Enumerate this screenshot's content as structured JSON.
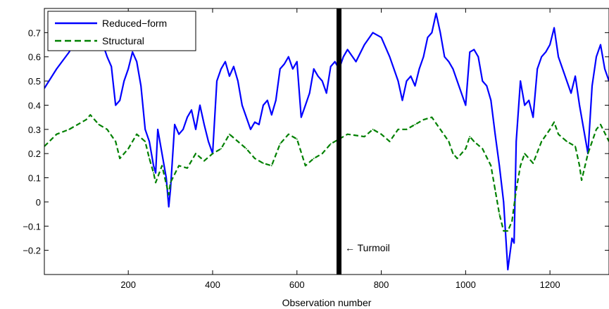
{
  "chart_data": {
    "type": "line",
    "title": "",
    "xlabel": "Observation number",
    "ylabel": "",
    "xlim": [
      1,
      1340
    ],
    "ylim": [
      -0.3,
      0.8
    ],
    "x_ticks": [
      200,
      400,
      600,
      800,
      1000,
      1200
    ],
    "y_ticks": [
      -0.2,
      -0.1,
      0,
      0.1,
      0.2,
      0.3,
      0.4,
      0.5,
      0.6,
      0.7
    ],
    "x_tick_labels": [
      "200",
      "400",
      "600",
      "800",
      "1000",
      "1200"
    ],
    "y_tick_labels": [
      "−0.2",
      "−0.1",
      "0",
      "0.1",
      "0.2",
      "0.3",
      "0.4",
      "0.5",
      "0.6",
      "0.7"
    ],
    "grid": false,
    "legend": "top-left",
    "annotation": {
      "text": "← Turmoil",
      "x": 712
    },
    "series": [
      {
        "name": "Reduced−form",
        "color": "#0000ff",
        "style": "solid",
        "points": [
          [
            1,
            0.47
          ],
          [
            30,
            0.55
          ],
          [
            60,
            0.62
          ],
          [
            80,
            0.7
          ],
          [
            110,
            0.78
          ],
          [
            120,
            0.72
          ],
          [
            140,
            0.65
          ],
          [
            150,
            0.6
          ],
          [
            160,
            0.56
          ],
          [
            170,
            0.4
          ],
          [
            180,
            0.42
          ],
          [
            190,
            0.5
          ],
          [
            200,
            0.55
          ],
          [
            210,
            0.62
          ],
          [
            220,
            0.58
          ],
          [
            230,
            0.48
          ],
          [
            240,
            0.3
          ],
          [
            250,
            0.25
          ],
          [
            260,
            0.15
          ],
          [
            265,
            0.12
          ],
          [
            270,
            0.3
          ],
          [
            280,
            0.2
          ],
          [
            290,
            0.1
          ],
          [
            296,
            -0.02
          ],
          [
            300,
            0.05
          ],
          [
            310,
            0.32
          ],
          [
            320,
            0.28
          ],
          [
            330,
            0.3
          ],
          [
            340,
            0.35
          ],
          [
            350,
            0.38
          ],
          [
            360,
            0.3
          ],
          [
            370,
            0.4
          ],
          [
            380,
            0.32
          ],
          [
            390,
            0.25
          ],
          [
            400,
            0.2
          ],
          [
            410,
            0.5
          ],
          [
            420,
            0.55
          ],
          [
            430,
            0.58
          ],
          [
            440,
            0.52
          ],
          [
            450,
            0.56
          ],
          [
            460,
            0.5
          ],
          [
            470,
            0.4
          ],
          [
            480,
            0.35
          ],
          [
            490,
            0.3
          ],
          [
            500,
            0.33
          ],
          [
            510,
            0.32
          ],
          [
            520,
            0.4
          ],
          [
            530,
            0.42
          ],
          [
            540,
            0.36
          ],
          [
            550,
            0.42
          ],
          [
            560,
            0.55
          ],
          [
            570,
            0.57
          ],
          [
            580,
            0.6
          ],
          [
            590,
            0.55
          ],
          [
            600,
            0.58
          ],
          [
            610,
            0.35
          ],
          [
            620,
            0.4
          ],
          [
            630,
            0.45
          ],
          [
            640,
            0.55
          ],
          [
            650,
            0.52
          ],
          [
            660,
            0.5
          ],
          [
            670,
            0.45
          ],
          [
            680,
            0.56
          ],
          [
            690,
            0.58
          ],
          [
            700,
            0.55
          ],
          [
            710,
            0.6
          ],
          [
            720,
            0.63
          ],
          [
            740,
            0.58
          ],
          [
            760,
            0.65
          ],
          [
            780,
            0.7
          ],
          [
            800,
            0.68
          ],
          [
            820,
            0.6
          ],
          [
            830,
            0.55
          ],
          [
            840,
            0.5
          ],
          [
            850,
            0.42
          ],
          [
            860,
            0.5
          ],
          [
            870,
            0.52
          ],
          [
            880,
            0.48
          ],
          [
            890,
            0.55
          ],
          [
            900,
            0.6
          ],
          [
            910,
            0.68
          ],
          [
            920,
            0.7
          ],
          [
            930,
            0.78
          ],
          [
            940,
            0.7
          ],
          [
            950,
            0.6
          ],
          [
            960,
            0.58
          ],
          [
            970,
            0.55
          ],
          [
            980,
            0.5
          ],
          [
            990,
            0.45
          ],
          [
            1000,
            0.4
          ],
          [
            1010,
            0.62
          ],
          [
            1020,
            0.63
          ],
          [
            1030,
            0.6
          ],
          [
            1040,
            0.5
          ],
          [
            1050,
            0.48
          ],
          [
            1060,
            0.42
          ],
          [
            1070,
            0.28
          ],
          [
            1080,
            0.15
          ],
          [
            1090,
            0.0
          ],
          [
            1100,
            -0.28
          ],
          [
            1110,
            -0.15
          ],
          [
            1115,
            -0.17
          ],
          [
            1120,
            0.25
          ],
          [
            1130,
            0.5
          ],
          [
            1140,
            0.4
          ],
          [
            1150,
            0.42
          ],
          [
            1160,
            0.35
          ],
          [
            1170,
            0.55
          ],
          [
            1180,
            0.6
          ],
          [
            1190,
            0.62
          ],
          [
            1200,
            0.65
          ],
          [
            1210,
            0.72
          ],
          [
            1220,
            0.6
          ],
          [
            1230,
            0.55
          ],
          [
            1240,
            0.5
          ],
          [
            1250,
            0.45
          ],
          [
            1260,
            0.52
          ],
          [
            1270,
            0.4
          ],
          [
            1280,
            0.3
          ],
          [
            1290,
            0.2
          ],
          [
            1300,
            0.48
          ],
          [
            1310,
            0.6
          ],
          [
            1320,
            0.65
          ],
          [
            1330,
            0.55
          ],
          [
            1340,
            0.5
          ]
        ]
      },
      {
        "name": "Structural",
        "color": "#008000",
        "style": "dashed",
        "points": [
          [
            1,
            0.23
          ],
          [
            30,
            0.28
          ],
          [
            60,
            0.3
          ],
          [
            80,
            0.32
          ],
          [
            100,
            0.34
          ],
          [
            110,
            0.36
          ],
          [
            130,
            0.32
          ],
          [
            150,
            0.3
          ],
          [
            170,
            0.25
          ],
          [
            180,
            0.18
          ],
          [
            200,
            0.22
          ],
          [
            220,
            0.28
          ],
          [
            240,
            0.25
          ],
          [
            250,
            0.18
          ],
          [
            260,
            0.12
          ],
          [
            265,
            0.08
          ],
          [
            280,
            0.15
          ],
          [
            296,
            0.03
          ],
          [
            300,
            0.08
          ],
          [
            320,
            0.15
          ],
          [
            340,
            0.14
          ],
          [
            360,
            0.2
          ],
          [
            380,
            0.17
          ],
          [
            400,
            0.2
          ],
          [
            420,
            0.22
          ],
          [
            440,
            0.28
          ],
          [
            460,
            0.25
          ],
          [
            480,
            0.22
          ],
          [
            500,
            0.18
          ],
          [
            520,
            0.16
          ],
          [
            540,
            0.15
          ],
          [
            560,
            0.24
          ],
          [
            580,
            0.28
          ],
          [
            600,
            0.26
          ],
          [
            620,
            0.15
          ],
          [
            640,
            0.18
          ],
          [
            660,
            0.2
          ],
          [
            680,
            0.24
          ],
          [
            700,
            0.26
          ],
          [
            720,
            0.28
          ],
          [
            760,
            0.27
          ],
          [
            780,
            0.3
          ],
          [
            800,
            0.28
          ],
          [
            820,
            0.25
          ],
          [
            840,
            0.3
          ],
          [
            860,
            0.3
          ],
          [
            880,
            0.32
          ],
          [
            900,
            0.34
          ],
          [
            920,
            0.35
          ],
          [
            940,
            0.3
          ],
          [
            960,
            0.25
          ],
          [
            970,
            0.2
          ],
          [
            980,
            0.18
          ],
          [
            1000,
            0.22
          ],
          [
            1010,
            0.27
          ],
          [
            1020,
            0.25
          ],
          [
            1040,
            0.22
          ],
          [
            1060,
            0.15
          ],
          [
            1070,
            0.05
          ],
          [
            1080,
            -0.05
          ],
          [
            1090,
            -0.12
          ],
          [
            1100,
            -0.12
          ],
          [
            1110,
            -0.08
          ],
          [
            1120,
            0.05
          ],
          [
            1130,
            0.15
          ],
          [
            1140,
            0.2
          ],
          [
            1160,
            0.16
          ],
          [
            1180,
            0.25
          ],
          [
            1200,
            0.3
          ],
          [
            1210,
            0.33
          ],
          [
            1220,
            0.28
          ],
          [
            1240,
            0.25
          ],
          [
            1260,
            0.23
          ],
          [
            1270,
            0.15
          ],
          [
            1275,
            0.09
          ],
          [
            1290,
            0.2
          ],
          [
            1310,
            0.3
          ],
          [
            1320,
            0.32
          ],
          [
            1340,
            0.25
          ]
        ]
      }
    ]
  }
}
